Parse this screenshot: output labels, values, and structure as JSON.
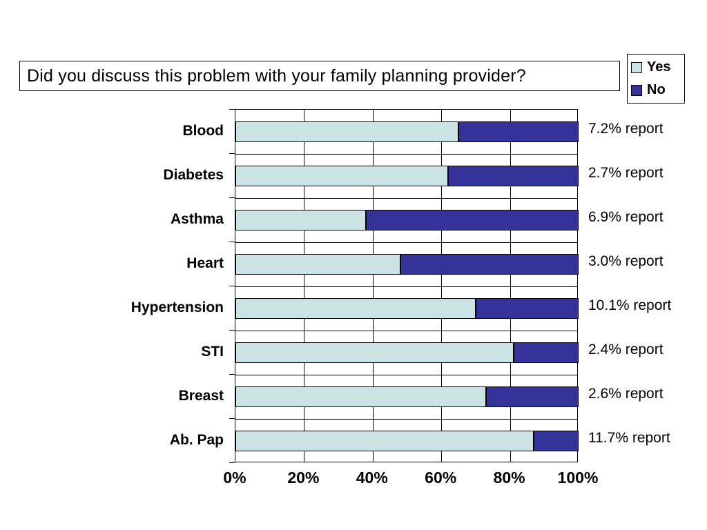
{
  "title": "Did you discuss this problem with your family planning provider?",
  "colors": {
    "yes": "#c9e4e2",
    "no": "#333399",
    "grid": "#000000"
  },
  "chart_data": {
    "type": "bar",
    "orientation": "horizontal",
    "stacked": true,
    "title": "Did you discuss this problem with your family planning provider?",
    "categories": [
      "Blood",
      "Diabetes",
      "Asthma",
      "Heart",
      "Hypertension",
      "STI",
      "Breast",
      "Ab. Pap"
    ],
    "series": [
      {
        "name": "Yes",
        "values": [
          65,
          62,
          38,
          48,
          70,
          81,
          73,
          87
        ]
      },
      {
        "name": "No",
        "values": [
          35,
          38,
          62,
          52,
          30,
          19,
          27,
          13
        ]
      }
    ],
    "annotations": [
      "7.2% report",
      "2.7% report",
      "6.9% report",
      "3.0% report",
      "10.1% report",
      "2.4% report",
      "2.6% report",
      "11.7% report"
    ],
    "x_ticks": [
      "0%",
      "20%",
      "40%",
      "60%",
      "80%",
      "100%"
    ],
    "xlim": [
      0,
      100
    ],
    "grid": true,
    "legend_position": "top-right"
  }
}
